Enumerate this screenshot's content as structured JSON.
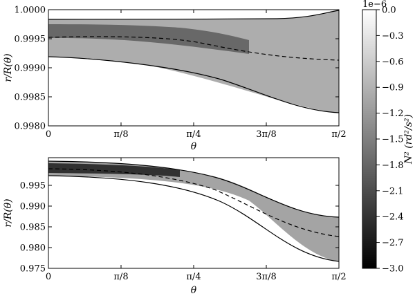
{
  "chart_data": {
    "type": "heatmap",
    "panels": [
      {
        "x_ticks": [
          "0",
          "π/8",
          "π/4",
          "3π/8",
          "π/2"
        ],
        "xlabel": "θ",
        "ylabel": "r/R(θ)",
        "y_ticks": [
          "0.9980",
          "0.9985",
          "0.9990",
          "0.9995",
          "1.0000"
        ],
        "ylim": [
          0.998,
          1.0
        ],
        "xlim": [
          0,
          1.5708
        ],
        "series": [
          {
            "style": "solid",
            "x": [
              0,
              0.393,
              0.785,
              1.178,
              1.571
            ],
            "y": [
              0.99984,
              0.99983,
              0.99983,
              0.99987,
              0.99996
            ]
          },
          {
            "style": "dashed",
            "x": [
              0,
              0.393,
              0.785,
              1.178,
              1.571
            ],
            "y": [
              0.99954,
              0.99952,
              0.99942,
              0.99925,
              0.99912
            ]
          },
          {
            "style": "solid",
            "x": [
              0,
              0.393,
              0.785,
              1.178,
              1.571
            ],
            "y": [
              0.99917,
              0.99908,
              0.9988,
              0.9984,
              0.99817
            ]
          }
        ]
      },
      {
        "x_ticks": [
          "0",
          "π/8",
          "π/4",
          "3π/8",
          "π/2"
        ],
        "xlabel": "θ",
        "ylabel": "r/R(θ)",
        "y_ticks": [
          "0.975",
          "0.980",
          "0.985",
          "0.990",
          "0.995"
        ],
        "ylim": [
          0.975,
          0.996
        ],
        "xlim": [
          0,
          1.5708
        ],
        "series": [
          {
            "style": "solid",
            "x": [
              0,
              0.393,
              0.785,
              1.178,
              1.571
            ],
            "y": [
              0.9952,
              0.9948,
              0.9932,
              0.989,
              0.985
            ]
          },
          {
            "style": "dashed",
            "x": [
              0,
              0.393,
              0.785,
              1.178,
              1.571
            ],
            "y": [
              0.994,
              0.9936,
              0.9917,
              0.9865,
              0.9811
            ]
          },
          {
            "style": "solid",
            "x": [
              0,
              0.393,
              0.785,
              1.178,
              1.571
            ],
            "y": [
              0.9927,
              0.9922,
              0.99,
              0.984,
              0.9765
            ]
          }
        ]
      }
    ],
    "colorbar": {
      "label": "N² (rd²/s²)",
      "multiplier": "1e−6",
      "ticks": [
        "0.0",
        "−0.3",
        "−0.6",
        "−0.9",
        "−1.2",
        "−1.5",
        "−1.8",
        "−2.1",
        "−2.4",
        "−2.7",
        "−3.0"
      ],
      "range": [
        -3.0,
        0.0
      ],
      "colormap": "gray"
    }
  }
}
